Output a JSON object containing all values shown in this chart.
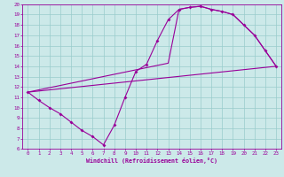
{
  "xlabel": "Windchill (Refroidissement éolien,°C)",
  "xlim": [
    -0.5,
    23.5
  ],
  "ylim": [
    6,
    20
  ],
  "xticks": [
    0,
    1,
    2,
    3,
    4,
    5,
    6,
    7,
    8,
    9,
    10,
    11,
    12,
    13,
    14,
    15,
    16,
    17,
    18,
    19,
    20,
    21,
    22,
    23
  ],
  "yticks": [
    6,
    7,
    8,
    9,
    10,
    11,
    12,
    13,
    14,
    15,
    16,
    17,
    18,
    19,
    20
  ],
  "bg_color": "#cce9e9",
  "line_color": "#990099",
  "grid_color": "#99cccc",
  "line1_x": [
    0,
    1,
    2,
    3,
    4,
    5,
    6,
    7,
    8,
    9,
    10,
    11,
    12,
    13,
    14,
    15,
    16,
    17,
    18,
    19,
    20,
    21,
    22,
    23
  ],
  "line1_y": [
    11.5,
    10.7,
    10.0,
    9.4,
    8.6,
    7.8,
    7.2,
    6.4,
    8.3,
    11.0,
    13.5,
    14.2,
    16.5,
    18.5,
    19.5,
    19.7,
    19.8,
    19.5,
    19.3,
    19.0,
    18.0,
    17.0,
    15.5,
    14.0
  ],
  "line2_x": [
    0,
    23
  ],
  "line2_y": [
    11.5,
    14.0
  ],
  "line3_x": [
    0,
    13,
    14,
    15,
    16,
    17,
    18,
    19,
    20,
    21,
    22,
    23
  ],
  "line3_y": [
    11.5,
    14.3,
    19.5,
    19.7,
    19.8,
    19.5,
    19.3,
    19.0,
    18.0,
    17.0,
    15.5,
    14.0
  ]
}
